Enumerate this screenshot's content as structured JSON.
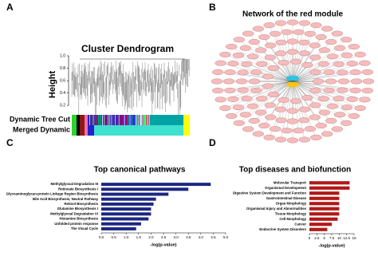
{
  "panels": {
    "a": {
      "letter": "A",
      "title": "Cluster Dendrogram",
      "ylabel": "Height",
      "yticks": [
        0.2,
        0.4,
        0.6,
        0.8,
        {
          "value": 1.0,
          "label": "1.0"
        }
      ],
      "ylim": [
        0.1,
        1.0
      ],
      "row1": "Dynamic Tree Cut",
      "row2": "Merged Dynamic"
    },
    "b": {
      "letter": "B",
      "title": "Network of the red module"
    },
    "c": {
      "letter": "C"
    },
    "d": {
      "letter": "D"
    }
  },
  "chart_data": [
    {
      "type": "hbar",
      "title": "Top canonical pathways",
      "color": "#1c2680",
      "categories": [
        "Methylglyoxal Degradation III",
        "Retinoate Biosynthesis I",
        "Glycoaminoglycan-protein Linkage Region Biosynthesis",
        "Bile Acid Biosynthesis, Neutral Pathway",
        "Retinol Biosynthesis",
        "Glutamine Biosynthesis I",
        "Methylglyoxal Degradation VI",
        "Histamine Biosynthesis",
        "Unfolded protein response",
        "The Visual Cycle"
      ],
      "values": [
        4.4,
        3.5,
        2.7,
        2.2,
        2.1,
        2.0,
        2.0,
        1.9,
        1.6,
        1.4
      ],
      "xlim": [
        0,
        5
      ],
      "xticks": [
        {
          "value": 0,
          "label": "0.0"
        },
        0.5,
        {
          "value": 1,
          "label": "1.0"
        },
        1.5,
        {
          "value": 2,
          "label": "2.0"
        },
        2.5,
        {
          "value": 3,
          "label": "3.0"
        },
        3.5,
        {
          "value": 4,
          "label": "4.0"
        },
        4.5,
        {
          "value": 5,
          "label": "5.0"
        }
      ],
      "xlabel": "-log(p-value)"
    },
    {
      "type": "hbar",
      "title": "Top diseases and biofunction",
      "color": "#b01818",
      "categories": [
        "Molecular Transport",
        "Organismal Development",
        "Digestive System Development and Function",
        "Gastrointestinal Disease",
        "Organ Morphology",
        "Organismal Injury and Abnormalities",
        "Tissue Morphology",
        "Cell Morphology",
        "Cancer",
        "Endocrine System Disorders"
      ],
      "values": [
        13.5,
        13.5,
        10,
        10,
        10,
        10,
        10,
        9.5,
        7.5,
        6
      ],
      "xlim": [
        0,
        15
      ],
      "xticks": [
        0,
        2.5,
        5,
        7.5,
        10,
        12.5,
        15
      ],
      "xlabel": "-log(p-value)"
    }
  ]
}
